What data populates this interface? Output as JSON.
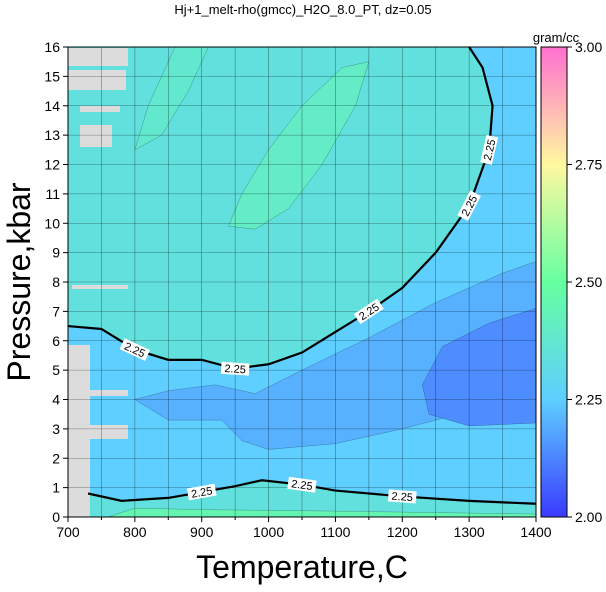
{
  "chart_data": {
    "type": "contour",
    "title": "Hj+1_melt-rho(gmcc)_H2O_8.0_PT, dz=0.05",
    "x_label": "Temperature,C",
    "y_label": "Pressure,kbar",
    "xlim": [
      700,
      1400
    ],
    "ylim": [
      0,
      16
    ],
    "xticks": [
      700,
      800,
      900,
      1000,
      1100,
      1200,
      1300,
      1400
    ],
    "yticks": [
      0,
      1,
      2,
      3,
      4,
      5,
      6,
      7,
      8,
      9,
      10,
      11,
      12,
      13,
      14,
      15,
      16
    ],
    "x_minor_ticks": [
      750,
      850,
      950,
      1050,
      1150,
      1250,
      1350
    ],
    "grid": true,
    "colorbar": {
      "label": "gram/cc",
      "lim": [
        2.0,
        3.0
      ],
      "ticks": [
        {
          "value": 2.0,
          "label": "2.00"
        },
        {
          "value": 2.25,
          "label": "2.25"
        },
        {
          "value": 2.5,
          "label": "2.50"
        },
        {
          "value": 2.75,
          "label": "2.75"
        },
        {
          "value": 3.0,
          "label": "3.00"
        }
      ],
      "colormap": [
        {
          "value": 2.0,
          "color": "#3a3aff"
        },
        {
          "value": 2.25,
          "color": "#5ecfff"
        },
        {
          "value": 2.5,
          "color": "#66ffa0"
        },
        {
          "value": 2.75,
          "color": "#fff8a0"
        },
        {
          "value": 3.0,
          "color": "#ff70d0"
        }
      ]
    },
    "regions": [
      {
        "level": 2.34,
        "x": [
          700,
          1400,
          1400,
          700
        ],
        "y": [
          0,
          0,
          16,
          16
        ]
      },
      {
        "level": 2.4,
        "x": [
          940,
          960,
          1000,
          1050,
          1110,
          1150,
          1130,
          1080,
          1030,
          980
        ],
        "y": [
          9.9,
          11,
          12.5,
          14,
          15.3,
          15.5,
          14,
          12,
          10.5,
          9.8
        ]
      },
      {
        "level": 2.38,
        "x": [
          800,
          820,
          860,
          910,
          880,
          840
        ],
        "y": [
          12.5,
          14,
          16,
          16,
          14.5,
          13
        ]
      },
      {
        "level": 2.25,
        "x": [
          700,
          750,
          800,
          850,
          900,
          950,
          1000,
          1050,
          1100,
          1150,
          1200,
          1250,
          1300,
          1330,
          1335,
          1320,
          1300,
          1400,
          1400,
          1300,
          1200,
          1100,
          1050,
          990,
          950,
          900,
          850,
          780,
          730,
          700
        ],
        "y": [
          6.5,
          6.4,
          5.7,
          5.35,
          5.35,
          5.05,
          5.2,
          5.6,
          6.3,
          7,
          7.8,
          9,
          10.6,
          12.5,
          14,
          15.3,
          16,
          16,
          0.45,
          0.55,
          0.7,
          0.9,
          1.1,
          1.25,
          1.05,
          0.85,
          0.65,
          0.55,
          0.8,
          1
        ]
      },
      {
        "level": 2.2,
        "x": [
          1400,
          1300,
          1200,
          1100,
          1000,
          960,
          930,
          850,
          800,
          850,
          920,
          980,
          1050,
          1150,
          1250,
          1350,
          1400
        ],
        "y": [
          4.4,
          3.6,
          3.0,
          2.5,
          2.3,
          2.6,
          3.3,
          3.3,
          4.0,
          4.3,
          4.5,
          4.2,
          5.0,
          6.1,
          7.3,
          8.3,
          8.7
        ]
      },
      {
        "level": 2.14,
        "x": [
          1400,
          1330,
          1260,
          1230,
          1240,
          1300,
          1400
        ],
        "y": [
          7.1,
          6.6,
          5.8,
          4.5,
          3.5,
          3.1,
          3.2
        ]
      },
      {
        "level": 2.45,
        "x": [
          760,
          1400,
          1400,
          1100,
          900,
          800
        ],
        "y": [
          0,
          0,
          0.1,
          0.2,
          0.25,
          0.3
        ]
      }
    ],
    "contours": [
      {
        "level": 2.25,
        "x": [
          700,
          750,
          800,
          850,
          900,
          950,
          1000,
          1050,
          1100,
          1150,
          1200,
          1250,
          1300,
          1330,
          1335,
          1320,
          1300
        ],
        "y": [
          6.5,
          6.4,
          5.7,
          5.35,
          5.35,
          5.05,
          5.2,
          5.6,
          6.3,
          7,
          7.8,
          9,
          10.6,
          12.5,
          14,
          15.3,
          16
        ],
        "labels": [
          2,
          5,
          9,
          12,
          13
        ]
      },
      {
        "level": 2.25,
        "x": [
          730,
          780,
          850,
          900,
          950,
          990,
          1050,
          1100,
          1200,
          1300,
          1400
        ],
        "y": [
          0.8,
          0.55,
          0.65,
          0.85,
          1.05,
          1.25,
          1.1,
          0.9,
          0.7,
          0.55,
          0.45
        ],
        "labels": [
          3,
          6,
          8
        ]
      }
    ]
  }
}
